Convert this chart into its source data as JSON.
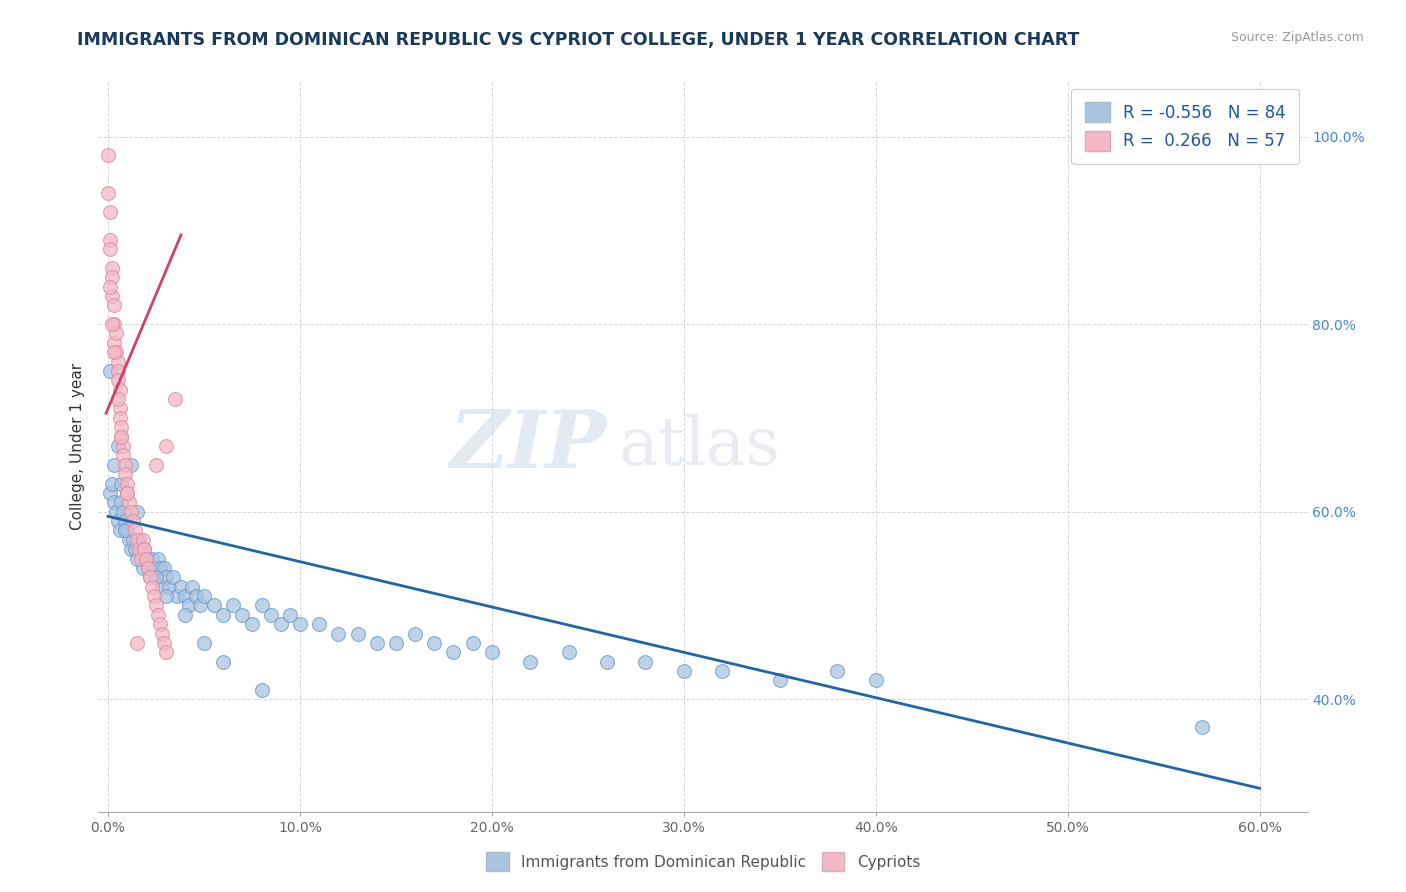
{
  "title": "IMMIGRANTS FROM DOMINICAN REPUBLIC VS CYPRIOT COLLEGE, UNDER 1 YEAR CORRELATION CHART",
  "source": "Source: ZipAtlas.com",
  "ylabel": "College, Under 1 year",
  "xlim": [
    -0.005,
    0.625
  ],
  "ylim": [
    0.28,
    1.06
  ],
  "xticks": [
    0.0,
    0.1,
    0.2,
    0.3,
    0.4,
    0.5,
    0.6
  ],
  "xticklabels": [
    "0.0%",
    "10.0%",
    "20.0%",
    "30.0%",
    "40.0%",
    "50.0%",
    "60.0%"
  ],
  "yticks": [
    0.4,
    0.6,
    0.8,
    1.0
  ],
  "yticklabels": [
    "40.0%",
    "60.0%",
    "80.0%",
    "100.0%"
  ],
  "legend_R1": "-0.556",
  "legend_N1": "84",
  "legend_R2": "0.266",
  "legend_N2": "57",
  "blue_color": "#aac4e0",
  "blue_edge_color": "#6699cc",
  "blue_line_color": "#2266aa",
  "pink_color": "#f4b8c8",
  "pink_edge_color": "#dd8899",
  "pink_line_color": "#cc4466",
  "legend_label1": "Immigrants from Dominican Republic",
  "legend_label2": "Cypriots",
  "watermark_zip": "ZIP",
  "watermark_atlas": "atlas",
  "title_color": "#1a3a5c",
  "background_color": "#ffffff",
  "grid_color": "#cccccc",
  "blue_scatter_x": [
    0.001,
    0.002,
    0.003,
    0.004,
    0.005,
    0.006,
    0.007,
    0.008,
    0.009,
    0.01,
    0.011,
    0.012,
    0.013,
    0.014,
    0.015,
    0.016,
    0.017,
    0.018,
    0.019,
    0.02,
    0.021,
    0.022,
    0.023,
    0.024,
    0.025,
    0.026,
    0.027,
    0.028,
    0.029,
    0.03,
    0.032,
    0.034,
    0.036,
    0.038,
    0.04,
    0.042,
    0.044,
    0.046,
    0.048,
    0.05,
    0.055,
    0.06,
    0.065,
    0.07,
    0.075,
    0.08,
    0.085,
    0.09,
    0.095,
    0.1,
    0.11,
    0.12,
    0.13,
    0.14,
    0.15,
    0.16,
    0.17,
    0.18,
    0.19,
    0.2,
    0.22,
    0.24,
    0.26,
    0.28,
    0.3,
    0.32,
    0.35,
    0.38,
    0.4,
    0.001,
    0.003,
    0.005,
    0.007,
    0.009,
    0.012,
    0.015,
    0.02,
    0.025,
    0.03,
    0.04,
    0.05,
    0.06,
    0.08,
    0.57
  ],
  "blue_scatter_y": [
    0.62,
    0.63,
    0.61,
    0.6,
    0.59,
    0.58,
    0.61,
    0.6,
    0.59,
    0.58,
    0.57,
    0.56,
    0.57,
    0.56,
    0.55,
    0.57,
    0.56,
    0.54,
    0.56,
    0.55,
    0.54,
    0.53,
    0.55,
    0.54,
    0.53,
    0.55,
    0.54,
    0.52,
    0.54,
    0.53,
    0.52,
    0.53,
    0.51,
    0.52,
    0.51,
    0.5,
    0.52,
    0.51,
    0.5,
    0.51,
    0.5,
    0.49,
    0.5,
    0.49,
    0.48,
    0.5,
    0.49,
    0.48,
    0.49,
    0.48,
    0.48,
    0.47,
    0.47,
    0.46,
    0.46,
    0.47,
    0.46,
    0.45,
    0.46,
    0.45,
    0.44,
    0.45,
    0.44,
    0.44,
    0.43,
    0.43,
    0.42,
    0.43,
    0.42,
    0.75,
    0.65,
    0.67,
    0.63,
    0.58,
    0.65,
    0.6,
    0.55,
    0.53,
    0.51,
    0.49,
    0.46,
    0.44,
    0.41,
    0.37
  ],
  "pink_scatter_x": [
    0.0,
    0.0,
    0.001,
    0.001,
    0.001,
    0.002,
    0.002,
    0.002,
    0.003,
    0.003,
    0.003,
    0.004,
    0.004,
    0.005,
    0.005,
    0.005,
    0.006,
    0.006,
    0.006,
    0.007,
    0.007,
    0.008,
    0.008,
    0.009,
    0.009,
    0.01,
    0.01,
    0.011,
    0.012,
    0.013,
    0.014,
    0.015,
    0.016,
    0.017,
    0.018,
    0.019,
    0.02,
    0.021,
    0.022,
    0.023,
    0.024,
    0.025,
    0.026,
    0.027,
    0.028,
    0.029,
    0.03,
    0.025,
    0.03,
    0.035,
    0.001,
    0.002,
    0.003,
    0.005,
    0.007,
    0.01,
    0.015
  ],
  "pink_scatter_y": [
    0.98,
    0.94,
    0.92,
    0.89,
    0.88,
    0.86,
    0.85,
    0.83,
    0.82,
    0.8,
    0.78,
    0.79,
    0.77,
    0.76,
    0.75,
    0.74,
    0.73,
    0.71,
    0.7,
    0.69,
    0.68,
    0.67,
    0.66,
    0.65,
    0.64,
    0.63,
    0.62,
    0.61,
    0.6,
    0.59,
    0.58,
    0.57,
    0.56,
    0.55,
    0.57,
    0.56,
    0.55,
    0.54,
    0.53,
    0.52,
    0.51,
    0.5,
    0.49,
    0.48,
    0.47,
    0.46,
    0.45,
    0.65,
    0.67,
    0.72,
    0.84,
    0.8,
    0.77,
    0.72,
    0.68,
    0.62,
    0.46
  ],
  "blue_trend_x": [
    0.0,
    0.6
  ],
  "blue_trend_y": [
    0.595,
    0.305
  ],
  "pink_trend_x": [
    -0.001,
    0.038
  ],
  "pink_trend_y": [
    0.705,
    0.895
  ]
}
